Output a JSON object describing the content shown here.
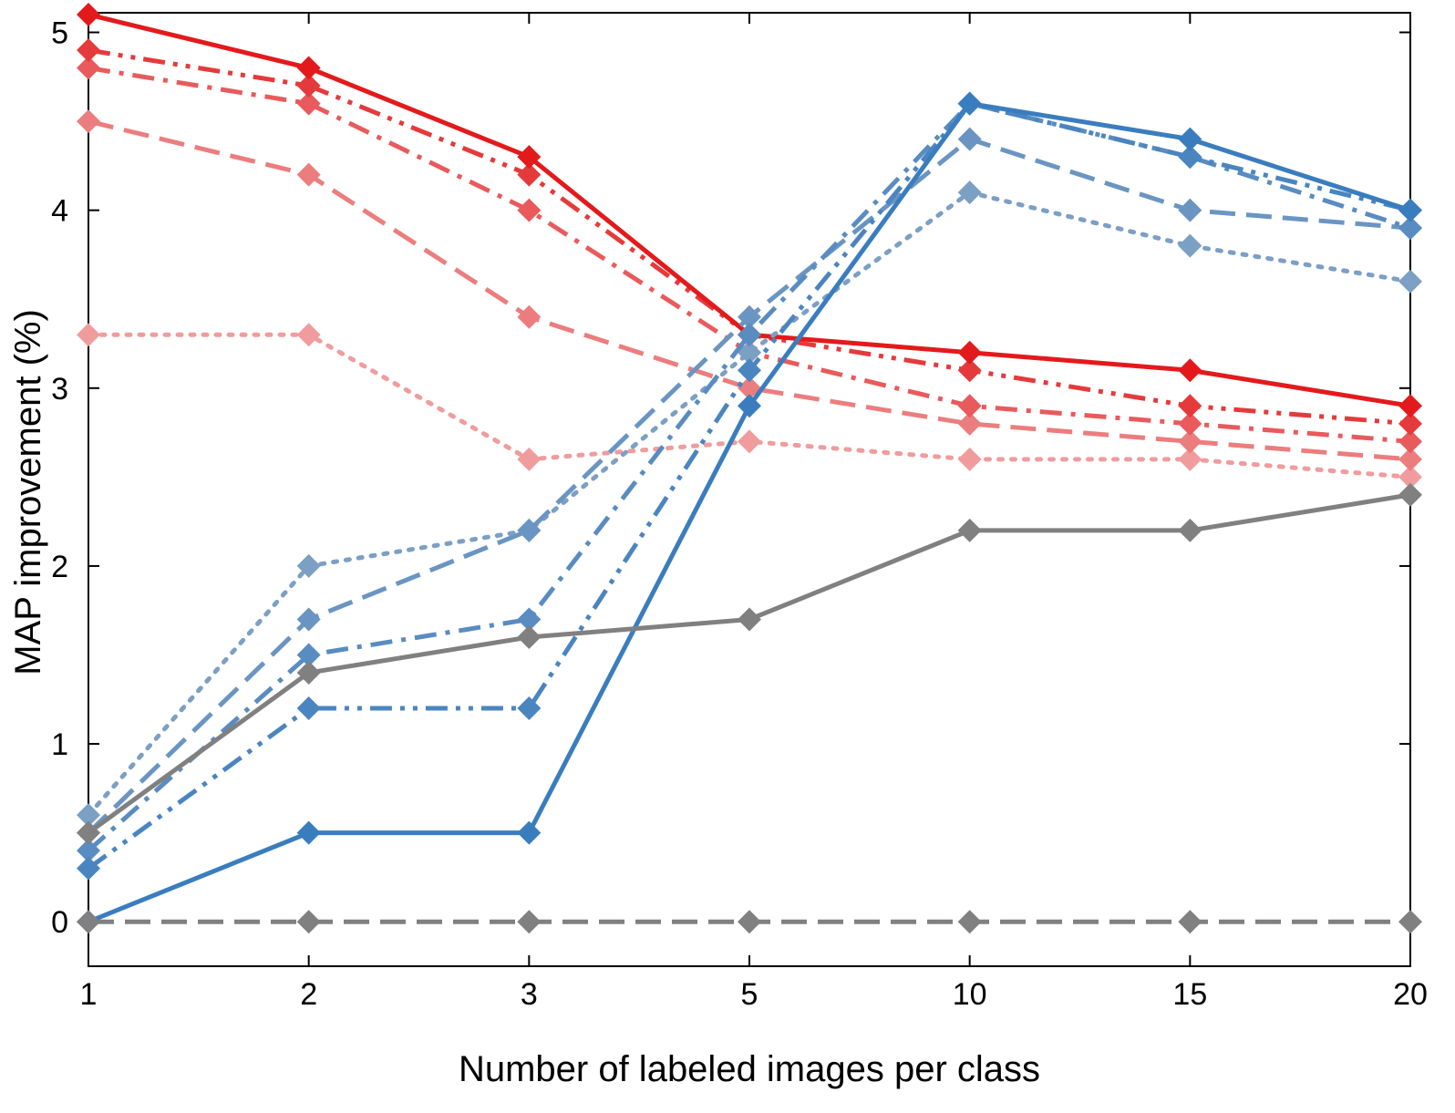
{
  "chart_data": {
    "type": "line",
    "x_label": "Number of labeled images per class",
    "y_label": "MAP improvement (%)",
    "categories": [
      "1",
      "2",
      "3",
      "5",
      "10",
      "15",
      "20"
    ],
    "ylim": [
      -0.25,
      5.1
    ],
    "yticks": [
      0,
      1,
      2,
      3,
      4,
      5
    ],
    "series": [
      {
        "color": "#f09c9d",
        "style": "dotted",
        "values": [
          3.3,
          3.3,
          2.6,
          2.7,
          2.6,
          2.6,
          2.5
        ]
      },
      {
        "color": "#ec7d7e",
        "style": "dashed",
        "values": [
          4.5,
          4.2,
          3.4,
          3.0,
          2.8,
          2.7,
          2.6
        ]
      },
      {
        "color": "#e95a5c",
        "style": "dashdot",
        "values": [
          4.8,
          4.6,
          4.0,
          3.2,
          2.9,
          2.8,
          2.7
        ]
      },
      {
        "color": "#e53a3c",
        "style": "dashdotdot",
        "values": [
          4.9,
          4.7,
          4.2,
          3.3,
          3.1,
          2.9,
          2.8
        ]
      },
      {
        "color": "#e31a1c",
        "style": "solid",
        "values": [
          5.1,
          4.8,
          4.3,
          3.3,
          3.2,
          3.1,
          2.9
        ]
      },
      {
        "color": "#7c9fc4",
        "style": "dotted",
        "values": [
          0.6,
          2.0,
          2.2,
          3.2,
          4.1,
          3.8,
          3.6
        ]
      },
      {
        "color": "#6a95c2",
        "style": "dashed",
        "values": [
          0.5,
          1.7,
          2.2,
          3.4,
          4.4,
          4.0,
          3.9
        ]
      },
      {
        "color": "#598cc1",
        "style": "dashdot",
        "values": [
          0.4,
          1.5,
          1.7,
          3.3,
          4.6,
          4.3,
          3.9
        ]
      },
      {
        "color": "#4a85c0",
        "style": "dashdotdot",
        "values": [
          0.3,
          1.2,
          1.2,
          3.1,
          4.6,
          4.3,
          4.0
        ]
      },
      {
        "color": "#3a7dbf",
        "style": "solid",
        "values": [
          0.0,
          0.5,
          0.5,
          2.9,
          4.6,
          4.4,
          4.0
        ]
      },
      {
        "color": "#808080",
        "style": "dashed",
        "values": [
          0,
          0,
          0,
          0,
          0,
          0,
          0
        ]
      },
      {
        "color": "#808080",
        "style": "solid",
        "values": [
          0.5,
          1.4,
          1.6,
          1.7,
          2.2,
          2.2,
          2.4
        ]
      }
    ]
  }
}
